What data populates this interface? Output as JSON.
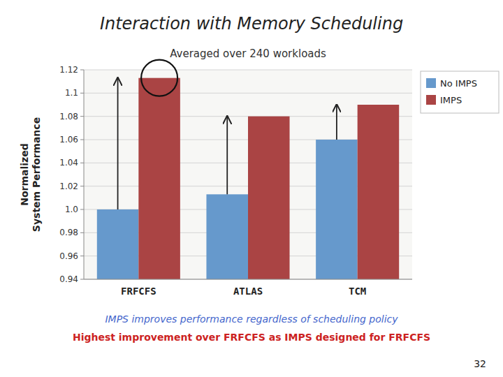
{
  "chart_data": {
    "type": "bar",
    "title": "Interaction with Memory Scheduling",
    "subtitle": "Averaged over 240 workloads",
    "ylabel": "Normalized\nSystem Performance",
    "categories": [
      "FRFCFS",
      "ATLAS",
      "TCM"
    ],
    "series": [
      {
        "name": "No IMPS",
        "color": "#6699CC",
        "values": [
          1.0,
          1.013,
          1.06
        ]
      },
      {
        "name": "IMPS",
        "color": "#AA4444",
        "values": [
          1.113,
          1.08,
          1.09
        ]
      }
    ],
    "ylim": [
      0.94,
      1.12
    ],
    "yticks": [
      0.94,
      0.96,
      0.98,
      {
        "value": 1.0,
        "label": "1.0"
      },
      1.02,
      1.04,
      1.06,
      1.08,
      1.1,
      1.12
    ],
    "grid": true,
    "legend": "upper right",
    "annotations": [
      {
        "text": "IMPS improves performance regardless of scheduling policy",
        "color": "#4466CC"
      },
      {
        "text": "Highest improvement over FRFCFS as IMPS designed for FRFCFS",
        "color": "#CC2222"
      },
      {
        "text": "32"
      }
    ]
  }
}
